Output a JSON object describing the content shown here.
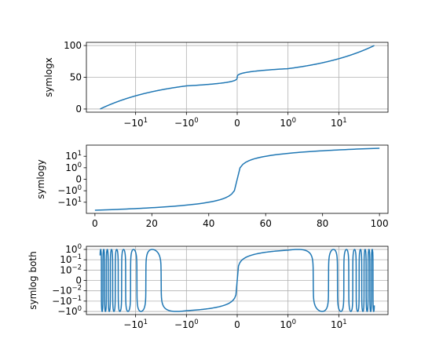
{
  "chart_data": [
    {
      "type": "line",
      "x_scale": "symlog",
      "y_scale": "linear",
      "ylabel": "symlogx",
      "xlabel": "",
      "title": "",
      "grid": "x",
      "x_range": [
        -50,
        50
      ],
      "ylim": [
        -5,
        105
      ],
      "x_ticks": [
        {
          "value": -10,
          "label": "−10",
          "sup": "1"
        },
        {
          "value": -1,
          "label": "−10",
          "sup": "0"
        },
        {
          "value": 0,
          "label": "0",
          "sup": ""
        },
        {
          "value": 1,
          "label": "10",
          "sup": "0"
        },
        {
          "value": 10,
          "label": "10",
          "sup": "1"
        }
      ],
      "y_ticks": [
        {
          "value": 0,
          "label": "0"
        },
        {
          "value": 50,
          "label": "50"
        },
        {
          "value": 100,
          "label": "100"
        }
      ],
      "series": [
        {
          "curve": "x = 0.01*y^3 ... y in [0,100] (x from -50 to 50)",
          "x": [
            -50,
            -25,
            -10,
            -3,
            0,
            3,
            10,
            25,
            50
          ],
          "y": [
            0,
            20.6,
            34.3,
            43.3,
            50,
            56.7,
            65.7,
            79.4,
            100
          ]
        }
      ]
    },
    {
      "type": "line",
      "x_scale": "linear",
      "y_scale": "symlog",
      "ylabel": "symlogy",
      "xlabel": "",
      "title": "",
      "grid": "none",
      "xlim": [
        -3,
        103
      ],
      "y_range": [
        -50,
        50
      ],
      "x_ticks": [
        {
          "value": 0,
          "label": "0"
        },
        {
          "value": 20,
          "label": "20"
        },
        {
          "value": 40,
          "label": "40"
        },
        {
          "value": 60,
          "label": "60"
        },
        {
          "value": 80,
          "label": "80"
        },
        {
          "value": 100,
          "label": "100"
        }
      ],
      "y_ticks": [
        {
          "value": -10,
          "label": "−10",
          "sup": "1"
        },
        {
          "value": -1,
          "label": "−10",
          "sup": "0"
        },
        {
          "value": 0,
          "label": "0",
          "sup": ""
        },
        {
          "value": 1,
          "label": "10",
          "sup": "0"
        },
        {
          "value": 10,
          "label": "10",
          "sup": "1"
        }
      ],
      "series": [
        {
          "x": [
            0,
            10,
            20,
            30,
            40,
            46,
            48,
            50,
            52,
            54,
            60,
            70,
            80,
            90,
            100
          ],
          "y": [
            -50,
            -40,
            -30,
            -20,
            -10,
            -4,
            -2,
            0,
            2,
            4,
            10,
            20,
            30,
            40,
            50
          ]
        }
      ]
    },
    {
      "type": "line",
      "x_scale": "symlog",
      "y_scale": "symlog",
      "ylabel": "symlog both",
      "xlabel": "",
      "title": "",
      "grid": "both",
      "x_range": [
        -50,
        50
      ],
      "y_range": [
        -1,
        1
      ],
      "x_ticks": [
        {
          "value": -10,
          "label": "−10",
          "sup": "1"
        },
        {
          "value": -1,
          "label": "−10",
          "sup": "0"
        },
        {
          "value": 0,
          "label": "0",
          "sup": ""
        },
        {
          "value": 1,
          "label": "10",
          "sup": "0"
        },
        {
          "value": 10,
          "label": "10",
          "sup": "1"
        }
      ],
      "y_ticks": [
        {
          "value": 1,
          "label": "10",
          "sup": "0"
        },
        {
          "value": 0.1,
          "label": "10",
          "sup": "−1"
        },
        {
          "value": 0.01,
          "label": "10",
          "sup": "−2"
        },
        {
          "value": 0,
          "label": "0",
          "sup": ""
        },
        {
          "value": -0.01,
          "label": "−10",
          "sup": "−2"
        },
        {
          "value": -0.1,
          "label": "−10",
          "sup": "−1"
        },
        {
          "value": -1,
          "label": "−10",
          "sup": "0"
        }
      ],
      "series": [
        {
          "curve": "y = sin(x), x in [-50, 50]"
        }
      ]
    }
  ]
}
